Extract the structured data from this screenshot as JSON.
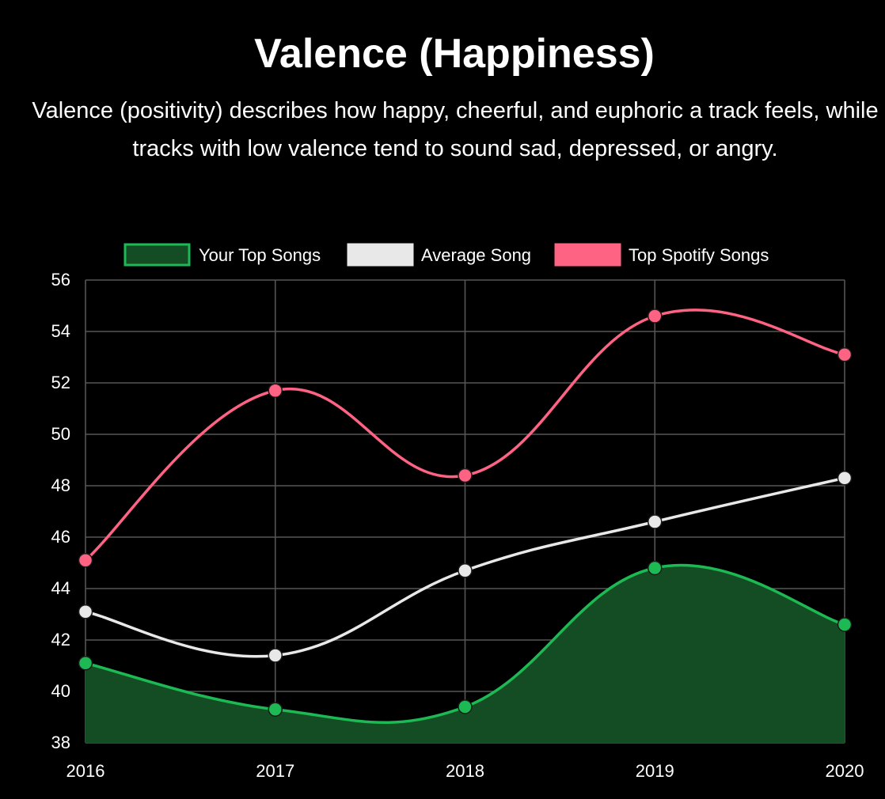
{
  "page": {
    "title": "Valence (Happiness)",
    "description": "Valence (positivity) describes how happy, cheerful, and euphoric a track feels, while tracks with low valence tend to sound sad, depressed, or angry."
  },
  "chart_data": {
    "type": "line",
    "categories": [
      "2016",
      "2017",
      "2018",
      "2019",
      "2020"
    ],
    "ylim": [
      38,
      56
    ],
    "yticks": [
      "38",
      "40",
      "42",
      "44",
      "46",
      "48",
      "50",
      "52",
      "54",
      "56"
    ],
    "grid": true,
    "legend_position": "top",
    "series": [
      {
        "name": "Your Top Songs",
        "values": [
          41.1,
          39.3,
          39.4,
          44.8,
          42.6
        ],
        "color": "#1db954",
        "fill": "#144d24",
        "filled": true
      },
      {
        "name": "Average Song",
        "values": [
          43.1,
          41.4,
          44.7,
          46.6,
          48.3
        ],
        "color": "#e8e8e8",
        "fill": "#e8e8e8",
        "filled": false
      },
      {
        "name": "Top Spotify Songs",
        "values": [
          45.1,
          51.7,
          48.4,
          54.6,
          53.1
        ],
        "color": "#ff6384",
        "fill": "#ff6384",
        "filled": false
      }
    ]
  }
}
